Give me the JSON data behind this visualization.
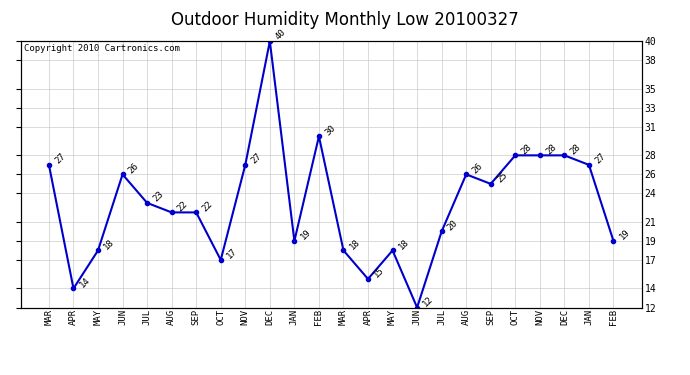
{
  "title": "Outdoor Humidity Monthly Low 20100327",
  "copyright": "Copyright 2010 Cartronics.com",
  "categories": [
    "MAR",
    "APR",
    "MAY",
    "JUN",
    "JUL",
    "AUG",
    "SEP",
    "OCT",
    "NOV",
    "DEC",
    "JAN",
    "FEB",
    "MAR",
    "APR",
    "MAY",
    "JUN",
    "JUL",
    "AUG",
    "SEP",
    "OCT",
    "NOV",
    "DEC",
    "JAN",
    "FEB"
  ],
  "values": [
    27,
    14,
    18,
    26,
    23,
    22,
    22,
    17,
    27,
    40,
    19,
    30,
    18,
    15,
    18,
    12,
    20,
    26,
    25,
    28,
    28,
    28,
    27,
    19
  ],
  "line_color": "#0000cc",
  "marker_color": "#0000cc",
  "background_color": "#ffffff",
  "grid_color": "#cccccc",
  "ylim": [
    12,
    40
  ],
  "yticks": [
    12,
    14,
    17,
    19,
    21,
    24,
    26,
    28,
    31,
    33,
    35,
    38,
    40
  ],
  "title_fontsize": 12,
  "copyright_fontsize": 6.5,
  "annotation_fontsize": 6.5,
  "xtick_fontsize": 6.5,
  "ytick_fontsize": 7
}
